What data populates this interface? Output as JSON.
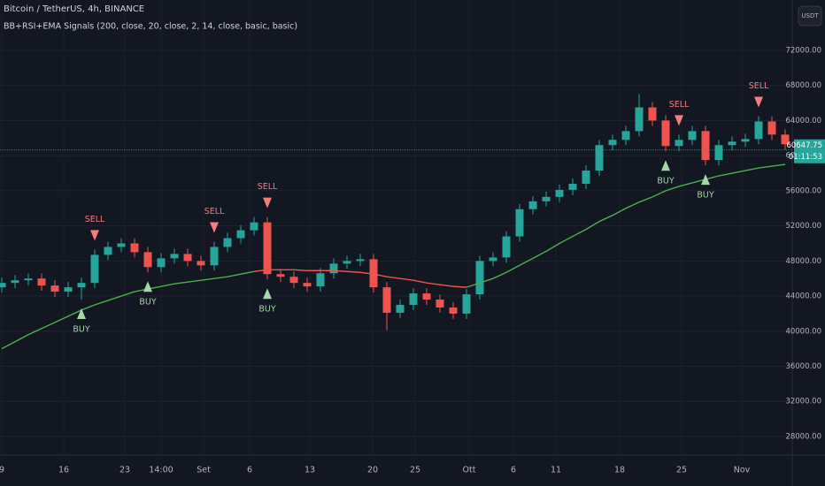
{
  "chart_data": {
    "type": "candlestick",
    "title": "Bitcoin / TetherUS, 4h, BINANCE",
    "subtitle": "BB+RSI+EMA Signals (200, close, 20, close, 2, 14, close, basic, basic)",
    "currency": "USDT",
    "last_price": 60647.75,
    "countdown": "01:11:53",
    "up_color": "#26a69a",
    "down_color": "#ef5350",
    "grid": true,
    "x": [
      0,
      1.5,
      3,
      4.5,
      6,
      7.5,
      9,
      10.5,
      12,
      13.5,
      15,
      16.5,
      18,
      19.5,
      21,
      22.5,
      24,
      25.5,
      27,
      28.5,
      30,
      31.5,
      33,
      34.5,
      36,
      37.5,
      39,
      40.5,
      42,
      43.5,
      45,
      46.5,
      48,
      49.5,
      51,
      52.5,
      54,
      55.5,
      57,
      58.5,
      60,
      61.5,
      63,
      64.5,
      66,
      67.5,
      69,
      70.5,
      72,
      73.5,
      75,
      76.5,
      78,
      79.5,
      81,
      82.5,
      84,
      85.5,
      87,
      88.5
    ],
    "open": [
      45000,
      45500,
      45800,
      46000,
      45200,
      44500,
      45000,
      45500,
      48700,
      49600,
      50000,
      49000,
      47300,
      48300,
      48800,
      48000,
      47500,
      49600,
      50600,
      51500,
      52400,
      46500,
      46200,
      45500,
      45100,
      46600,
      47700,
      48000,
      48200,
      45000,
      42100,
      43000,
      44300,
      43600,
      42700,
      42000,
      44200,
      48000,
      48400,
      50800,
      53900,
      54800,
      55300,
      56100,
      56800,
      58300,
      61200,
      61800,
      62800,
      65500,
      64000,
      61100,
      61800,
      62800,
      59500,
      61200,
      61600,
      61900,
      63900,
      62400
    ],
    "high": [
      46100,
      46400,
      46600,
      46600,
      45800,
      45600,
      46100,
      49300,
      50200,
      50600,
      50600,
      49600,
      48900,
      49400,
      49400,
      48600,
      50200,
      51200,
      52100,
      53000,
      53000,
      47100,
      46800,
      46100,
      47200,
      48300,
      48600,
      48800,
      48800,
      45600,
      43600,
      44900,
      44900,
      44200,
      43300,
      44800,
      48600,
      49000,
      51400,
      54500,
      55400,
      55900,
      56700,
      57400,
      58900,
      61800,
      62400,
      63400,
      67000,
      66100,
      64600,
      62400,
      63400,
      63400,
      61800,
      62200,
      62500,
      64500,
      64500,
      63000
    ],
    "low": [
      44400,
      44900,
      45200,
      44600,
      43900,
      43900,
      43600,
      44900,
      48100,
      49000,
      48400,
      46700,
      46700,
      47700,
      47400,
      46900,
      46900,
      49000,
      50000,
      50900,
      45900,
      45600,
      44900,
      44500,
      44500,
      46000,
      47100,
      47400,
      44400,
      40100,
      41500,
      42400,
      43000,
      42100,
      41400,
      41400,
      43600,
      47400,
      47800,
      50200,
      53300,
      54200,
      54700,
      55500,
      56200,
      57700,
      60600,
      61200,
      62200,
      63400,
      60500,
      60500,
      61200,
      58900,
      58900,
      60600,
      61000,
      61300,
      61800,
      60700
    ],
    "close": [
      45500,
      45800,
      46000,
      45200,
      44500,
      45000,
      45500,
      48700,
      49600,
      50000,
      49000,
      47300,
      48300,
      48800,
      48000,
      47500,
      49600,
      50600,
      51500,
      52400,
      46500,
      46200,
      45500,
      45100,
      46600,
      47700,
      48000,
      48200,
      45000,
      42100,
      43000,
      44300,
      43600,
      42700,
      42000,
      44200,
      48000,
      48400,
      50800,
      53900,
      54800,
      55300,
      56100,
      56800,
      58300,
      61200,
      61800,
      62800,
      65500,
      64000,
      61100,
      61800,
      62800,
      59500,
      61200,
      61600,
      61900,
      63900,
      62400,
      61300
    ],
    "ema": [
      {
        "color": "#4caf50",
        "values": [
          38000,
          38800,
          39600,
          40300,
          41000,
          41700,
          42400,
          43000,
          43500,
          44000,
          44500,
          44800,
          45100,
          45400,
          45600,
          45800,
          46000,
          46200,
          46500,
          46800,
          null,
          null,
          null,
          null,
          null,
          null,
          null,
          null,
          null,
          null,
          null,
          null,
          null,
          null,
          null,
          45000,
          45500,
          46000,
          46700,
          47500,
          48300,
          49100,
          50000,
          50800,
          51600,
          52500,
          53200,
          54000,
          54700,
          55300,
          56000,
          56500,
          56900,
          57300,
          57700,
          58000,
          58300,
          58600,
          58800,
          59000
        ]
      },
      {
        "color": "#ef5350",
        "values": [
          null,
          null,
          null,
          null,
          null,
          null,
          null,
          null,
          null,
          null,
          null,
          null,
          null,
          null,
          null,
          null,
          null,
          null,
          null,
          46800,
          47000,
          47000,
          47000,
          46900,
          46900,
          46900,
          46800,
          46700,
          46500,
          46200,
          46000,
          45800,
          45500,
          45300,
          45100,
          45000,
          null,
          null,
          null,
          null,
          null,
          null,
          null,
          null,
          null,
          null,
          null,
          null,
          null,
          null,
          null,
          null,
          null,
          null,
          null,
          null,
          null,
          null,
          null,
          null
        ]
      }
    ],
    "annotations": [
      {
        "text": "SELL",
        "candle": 7,
        "color": "#f77c80"
      },
      {
        "text": "SELL",
        "candle": 16,
        "color": "#f77c80"
      },
      {
        "text": "SELL",
        "candle": 20,
        "color": "#f77c80"
      },
      {
        "text": "SELL",
        "candle": 51,
        "color": "#f77c80"
      },
      {
        "text": "SELL",
        "candle": 57,
        "color": "#f77c80"
      },
      {
        "text": "BUY",
        "candle": 6,
        "color": "#a5d6a7"
      },
      {
        "text": "BUY",
        "candle": 11,
        "color": "#a5d6a7"
      },
      {
        "text": "BUY",
        "candle": 20,
        "color": "#a5d6a7"
      },
      {
        "text": "BUY",
        "candle": 50,
        "color": "#a5d6a7"
      },
      {
        "text": "BUY",
        "candle": 53,
        "color": "#a5d6a7"
      }
    ],
    "xlim": [
      -0.2,
      89.3
    ],
    "xticks": [
      {
        "value": 0,
        "label": "9"
      },
      {
        "value": 7,
        "label": "16"
      },
      {
        "value": 13.9,
        "label": "23"
      },
      {
        "value": 18,
        "label": "14:00"
      },
      {
        "value": 22.8,
        "label": "Set"
      },
      {
        "value": 28,
        "label": "6"
      },
      {
        "value": 34.8,
        "label": "13"
      },
      {
        "value": 41.9,
        "label": "20"
      },
      {
        "value": 46.7,
        "label": "25"
      },
      {
        "value": 52.8,
        "label": "Ott"
      },
      {
        "value": 57.8,
        "label": "6"
      },
      {
        "value": 62.6,
        "label": "11"
      },
      {
        "value": 69.8,
        "label": "18"
      },
      {
        "value": 76.8,
        "label": "25"
      },
      {
        "value": 83.6,
        "label": "Nov"
      }
    ],
    "ylim": [
      25880,
      77740
    ],
    "yticks": [
      {
        "value": 28000,
        "label": "28000.00"
      },
      {
        "value": 32000,
        "label": "32000.00"
      },
      {
        "value": 36000,
        "label": "36000.00"
      },
      {
        "value": 40000,
        "label": "40000.00"
      },
      {
        "value": 44000,
        "label": "44000.00"
      },
      {
        "value": 48000,
        "label": "48000.00"
      },
      {
        "value": 52000,
        "label": "52000.00"
      },
      {
        "value": 56000,
        "label": "56000.00"
      },
      {
        "value": 60000,
        "label": "60000.00"
      },
      {
        "value": 64000,
        "label": "64000.00"
      },
      {
        "value": 68000,
        "label": "68000.00"
      },
      {
        "value": 72000,
        "label": "72000.00"
      }
    ]
  }
}
